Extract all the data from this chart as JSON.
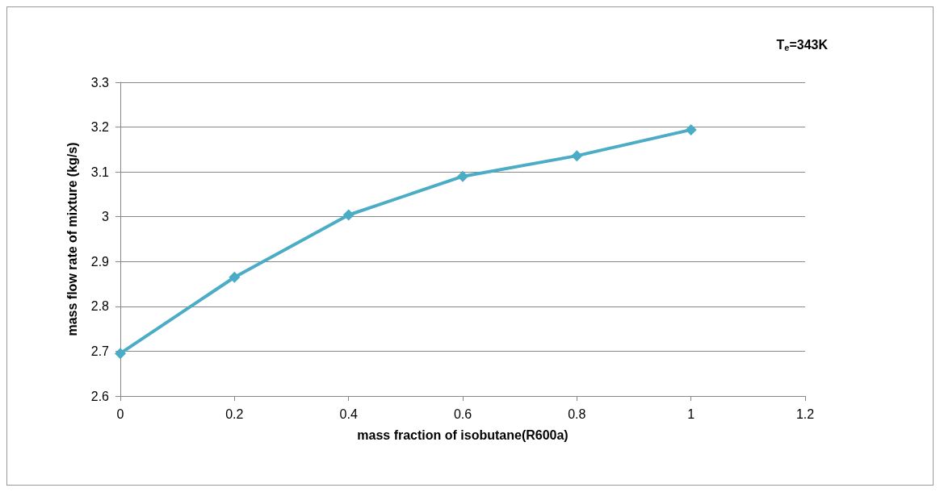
{
  "chart_data": {
    "type": "line",
    "xlabel": "mass fraction of isobutane(R600a)",
    "ylabel": "mass flow rate of mixture (kg/s)",
    "annotations": [
      "T$_{e}$=343K"
    ],
    "x": [
      0,
      0.2,
      0.4,
      0.6,
      0.8,
      1
    ],
    "series": [
      {
        "color": "#4bacc6",
        "values": [
          2.695,
          2.865,
          3.004,
          3.09,
          3.136,
          3.194
        ]
      }
    ],
    "xlim": [
      0,
      1.2
    ],
    "xticks": [
      0,
      0.2,
      0.4,
      0.6,
      0.8,
      1,
      1.2
    ],
    "ylim": [
      2.6,
      3.3
    ],
    "yticks": [
      2.6,
      2.7,
      2.8,
      2.9,
      3,
      3.1,
      3.2,
      3.3
    ],
    "grid": "y",
    "marker": "diamond",
    "line_style": "solid"
  }
}
